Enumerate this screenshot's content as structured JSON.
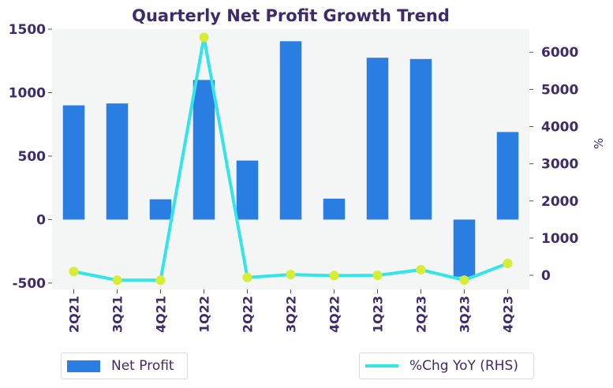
{
  "chart_data": {
    "type": "bar+line",
    "title": "Quarterly Net Profit Growth Trend",
    "categories": [
      "2Q21",
      "3Q21",
      "4Q21",
      "1Q22",
      "2Q22",
      "3Q22",
      "4Q22",
      "1Q23",
      "2Q23",
      "3Q23",
      "4Q23"
    ],
    "series": [
      {
        "name": "Net Profit",
        "type": "bar",
        "axis": "left",
        "values": [
          900,
          915,
          160,
          1100,
          465,
          1405,
          165,
          1275,
          1265,
          -450,
          690
        ]
      },
      {
        "name": "%Chg YoY (RHS)",
        "type": "line",
        "axis": "right",
        "values": [
          100,
          -130,
          -130,
          6400,
          -60,
          20,
          -10,
          0,
          150,
          -130,
          320
        ]
      }
    ],
    "y_left": {
      "ylim": [
        -550,
        1500
      ],
      "ticks": [
        -500,
        0,
        500,
        1000,
        1500
      ]
    },
    "y_right": {
      "label": "%",
      "ylim": [
        -380,
        6620
      ],
      "ticks": [
        0,
        1000,
        2000,
        3000,
        4000,
        5000,
        6000
      ]
    },
    "grid": false,
    "legend_placement": "bottom",
    "colors": {
      "bar": "#2a7de1",
      "line": "#33e5e8",
      "marker": "#d7ec35",
      "text": "#3d2b6b",
      "plot_bg": "#f4f5f5"
    }
  },
  "legend": {
    "bars_label": "Net Profit",
    "line_label": "%Chg YoY (RHS)"
  }
}
